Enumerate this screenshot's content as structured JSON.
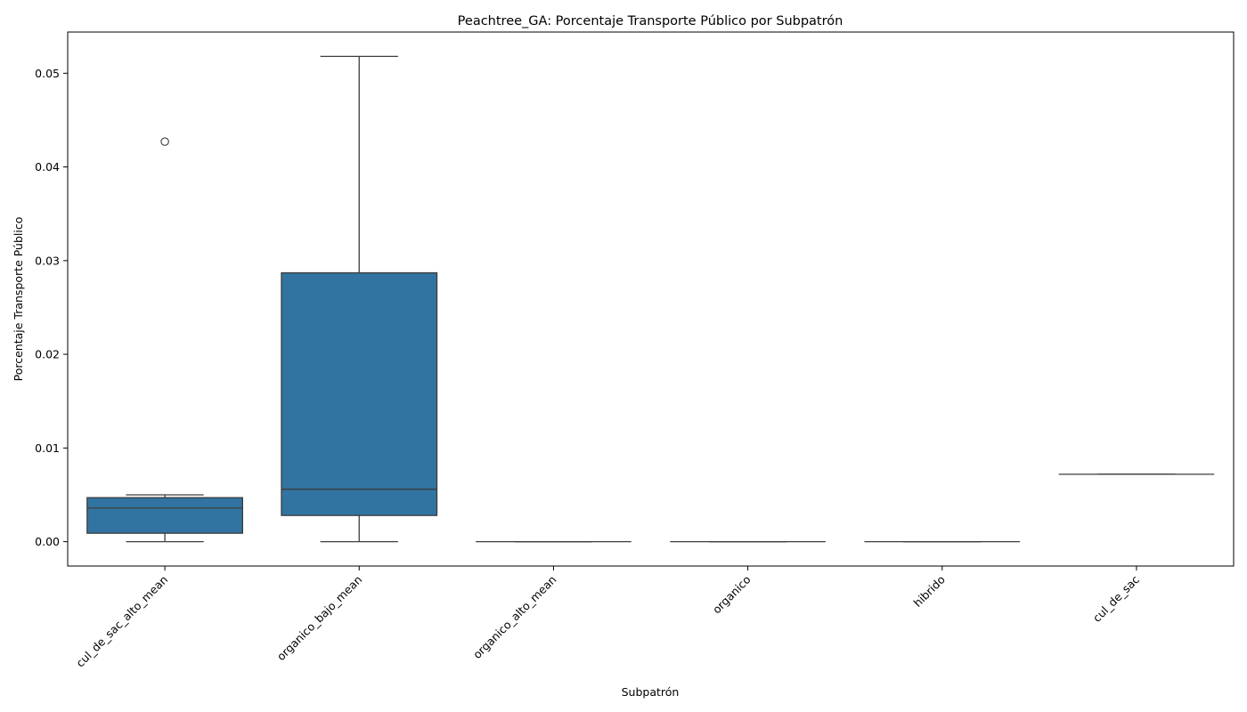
{
  "chart_data": {
    "type": "box",
    "title": "Peachtree_GA: Porcentaje Transporte Público por Subpatrón",
    "xlabel": "Subpatrón",
    "ylabel": "Porcentaje Transporte Público",
    "ylim": [
      -0.0026,
      0.0544
    ],
    "yticks": [
      0.0,
      0.01,
      0.02,
      0.03,
      0.04,
      0.05
    ],
    "ytick_labels": [
      "0.00",
      "0.01",
      "0.02",
      "0.03",
      "0.04",
      "0.05"
    ],
    "grid": false,
    "box_color": "#3274a1",
    "line_color": "#3d3d3d",
    "categories": [
      "cul_de_sac_alto_mean",
      "organico_bajo_mean",
      "organico_alto_mean",
      "organico",
      "hibrido",
      "cul_de_sac"
    ],
    "boxes": [
      {
        "category": "cul_de_sac_alto_mean",
        "whisker_low": 0.0,
        "q1": 0.0009,
        "median": 0.0036,
        "q3": 0.0047,
        "whisker_high": 0.005,
        "outliers": [
          0.0427
        ]
      },
      {
        "category": "organico_bajo_mean",
        "whisker_low": 0.0,
        "q1": 0.0028,
        "median": 0.0056,
        "q3": 0.0287,
        "whisker_high": 0.0518,
        "outliers": []
      },
      {
        "category": "organico_alto_mean",
        "whisker_low": 0.0,
        "q1": 0.0,
        "median": 0.0,
        "q3": 0.0,
        "whisker_high": 0.0,
        "outliers": []
      },
      {
        "category": "organico",
        "whisker_low": 0.0,
        "q1": 0.0,
        "median": 0.0,
        "q3": 0.0,
        "whisker_high": 0.0,
        "outliers": []
      },
      {
        "category": "hibrido",
        "whisker_low": 0.0,
        "q1": 0.0,
        "median": 0.0,
        "q3": 0.0,
        "whisker_high": 0.0,
        "outliers": []
      },
      {
        "category": "cul_de_sac",
        "whisker_low": 0.0072,
        "q1": 0.0072,
        "median": 0.0072,
        "q3": 0.0072,
        "whisker_high": 0.0072,
        "outliers": []
      }
    ]
  }
}
